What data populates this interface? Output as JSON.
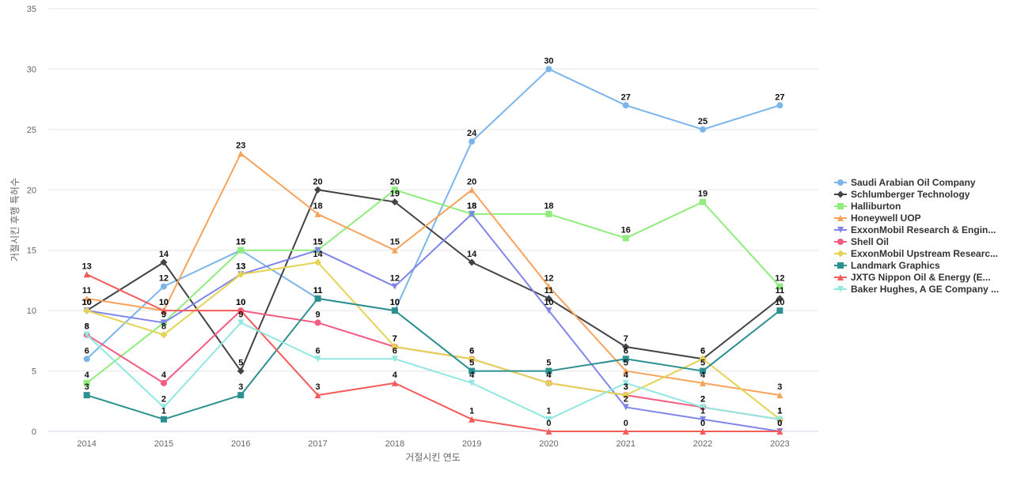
{
  "chart_data": {
    "type": "line",
    "title": "",
    "xlabel": "거절시킨 연도",
    "ylabel": "거절시킨 후행 특허수",
    "ylim": [
      0,
      35
    ],
    "yticks": [
      0,
      5,
      10,
      15,
      20,
      25,
      30,
      35
    ],
    "grid": true,
    "legend_position": "right",
    "categories": [
      "2014",
      "2015",
      "2016",
      "2017",
      "2018",
      "2019",
      "2020",
      "2021",
      "2022",
      "2023"
    ],
    "series": [
      {
        "name": "Saudi Arabian Oil Company",
        "color": "#7cb5ec",
        "marker": "circle",
        "values": [
          6,
          12,
          15,
          11,
          10,
          24,
          30,
          27,
          25,
          27
        ]
      },
      {
        "name": "Schlumberger Technology",
        "color": "#434348",
        "marker": "diamond",
        "values": [
          10,
          14,
          5,
          20,
          19,
          14,
          11,
          7,
          6,
          11
        ]
      },
      {
        "name": "Halliburton",
        "color": "#90ed7d",
        "marker": "square",
        "values": [
          4,
          9,
          15,
          15,
          20,
          18,
          18,
          16,
          19,
          12
        ]
      },
      {
        "name": "Honeywell UOP",
        "color": "#f7a35c",
        "marker": "triangle",
        "values": [
          11,
          10,
          23,
          18,
          15,
          20,
          12,
          5,
          4,
          3
        ]
      },
      {
        "name": "ExxonMobil Research & Engin...",
        "color": "#8085e9",
        "marker": "triangle-down",
        "values": [
          10,
          9,
          13,
          15,
          12,
          18,
          10,
          2,
          1,
          0
        ]
      },
      {
        "name": "Shell Oil",
        "color": "#f15c80",
        "marker": "circle",
        "values": [
          8,
          4,
          10,
          9,
          7,
          6,
          4,
          3,
          2,
          1
        ]
      },
      {
        "name": "ExxonMobil Upstream Researc...",
        "color": "#e4d354",
        "marker": "diamond",
        "values": [
          10,
          8,
          13,
          14,
          7,
          6,
          4,
          3,
          6,
          1
        ]
      },
      {
        "name": "Landmark Graphics",
        "color": "#2b908f",
        "marker": "square",
        "values": [
          3,
          1,
          3,
          11,
          10,
          5,
          5,
          6,
          5,
          10
        ]
      },
      {
        "name": "JXTG Nippon Oil & Energy (E...",
        "color": "#f45b5b",
        "marker": "triangle",
        "values": [
          13,
          10,
          10,
          3,
          4,
          1,
          0,
          0,
          0,
          0
        ]
      },
      {
        "name": "Baker Hughes, A GE Company ...",
        "color": "#91e8e1",
        "marker": "triangle-down",
        "values": [
          8,
          2,
          9,
          6,
          6,
          4,
          1,
          4,
          2,
          1
        ]
      }
    ]
  }
}
